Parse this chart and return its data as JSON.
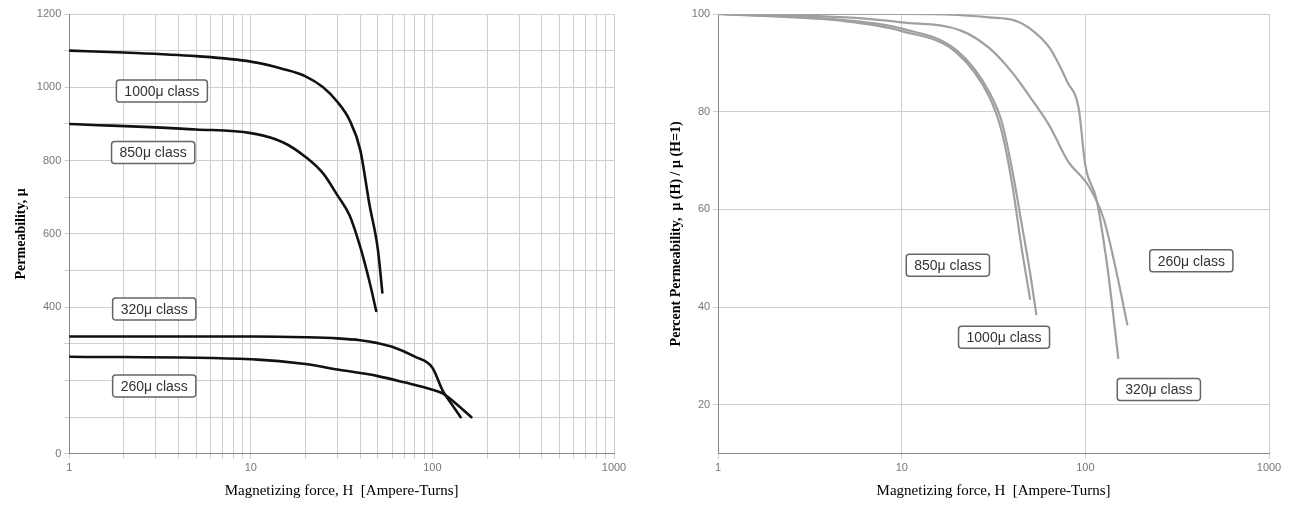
{
  "chart_data": [
    {
      "type": "line",
      "xlabel": "Magnetizing force, H  [Ampere-Turns]",
      "ylabel": "Permeability, μ",
      "log": "x",
      "grid": true,
      "legend": false,
      "marker": "none",
      "line_style": "solid",
      "xlim": [
        1,
        1000
      ],
      "xticks": [
        1,
        {
          "value": 2,
          "label": null
        },
        {
          "value": 3,
          "label": null
        },
        {
          "value": 4,
          "label": null
        },
        {
          "value": 5,
          "label": null
        },
        {
          "value": 6,
          "label": null
        },
        {
          "value": 7,
          "label": null
        },
        {
          "value": 8,
          "label": null
        },
        {
          "value": 9,
          "label": null
        },
        10,
        {
          "value": 20,
          "label": null
        },
        {
          "value": 30,
          "label": null
        },
        {
          "value": 40,
          "label": null
        },
        {
          "value": 50,
          "label": null
        },
        {
          "value": 60,
          "label": null
        },
        {
          "value": 70,
          "label": null
        },
        {
          "value": 80,
          "label": null
        },
        {
          "value": 90,
          "label": null
        },
        100,
        {
          "value": 200,
          "label": null
        },
        {
          "value": 300,
          "label": null
        },
        {
          "value": 400,
          "label": null
        },
        {
          "value": 500,
          "label": null
        },
        {
          "value": 600,
          "label": null
        },
        {
          "value": 700,
          "label": null
        },
        {
          "value": 800,
          "label": null
        },
        {
          "value": 900,
          "label": null
        },
        1000
      ],
      "ylim": [
        0,
        1200
      ],
      "yticks": [
        0,
        {
          "value": 100,
          "label": null
        },
        {
          "value": 200,
          "label": null
        },
        {
          "value": 300,
          "label": null
        },
        400,
        {
          "value": 500,
          "label": null
        },
        600,
        {
          "value": 700,
          "label": null
        },
        800,
        {
          "value": 900,
          "label": null
        },
        1000,
        {
          "value": 1100,
          "label": null
        },
        1200
      ],
      "series": [
        {
          "name": "1000μ class",
          "color": "#111111",
          "x": [
            1,
            2,
            5,
            10,
            15,
            20,
            25,
            30,
            35,
            40,
            45,
            50,
            53
          ],
          "values": [
            1100,
            1095,
            1085,
            1070,
            1050,
            1030,
            1000,
            960,
            910,
            830,
            680,
            560,
            440
          ]
        },
        {
          "name": "850μ class",
          "color": "#111111",
          "x": [
            1,
            5,
            10,
            15,
            20,
            25,
            30,
            35,
            40,
            45,
            49
          ],
          "values": [
            900,
            885,
            875,
            850,
            810,
            765,
            705,
            650,
            565,
            470,
            390
          ]
        },
        {
          "name": "320μ class",
          "color": "#111111",
          "x": [
            1,
            10,
            20,
            30,
            40,
            50,
            60,
            80,
            100,
            114,
            130,
            143
          ],
          "values": [
            320,
            320,
            318,
            315,
            310,
            302,
            292,
            265,
            235,
            172,
            130,
            100
          ]
        },
        {
          "name": "260μ class",
          "color": "#111111",
          "x": [
            1,
            10,
            20,
            30,
            50,
            70,
            100,
            114,
            140,
            164
          ],
          "values": [
            265,
            258,
            245,
            230,
            212,
            195,
            175,
            165,
            130,
            100
          ]
        }
      ]
    },
    {
      "type": "line",
      "xlabel": "Magnetizing force, H  [Ampere-Turns]",
      "ylabel": "Percent Permeability,  μ (H) / μ (H=1)",
      "log": "x",
      "grid": true,
      "legend": false,
      "marker": "none",
      "line_style": "solid",
      "xlim": [
        1,
        1000
      ],
      "xticks": [
        1,
        10,
        100,
        1000
      ],
      "ylim": [
        10,
        100
      ],
      "yticks": [
        20,
        40,
        60,
        80,
        100
      ],
      "series": [
        {
          "name": "850μ class",
          "color": "#a0a0a0",
          "x": [
            1,
            5,
            10,
            20,
            30,
            35,
            40,
            45,
            50
          ],
          "values": [
            100,
            98.5,
            96.5,
            92,
            83,
            76,
            65,
            52,
            41.7
          ]
        },
        {
          "name": "1000μ class",
          "color": "#a0a0a0",
          "x": [
            1,
            5,
            10,
            20,
            30,
            35,
            40,
            45,
            50,
            54
          ],
          "values": [
            100,
            98.7,
            97,
            92.5,
            84,
            78,
            68,
            57,
            47,
            38.6
          ]
        },
        {
          "name": "320μ class",
          "color": "#a0a0a0",
          "x": [
            1,
            10,
            20,
            30,
            41,
            50,
            64,
            80,
            92,
            100,
            115,
            132,
            151
          ],
          "values": [
            100,
            100,
            99.8,
            99.3,
            98.7,
            97,
            93,
            86,
            80.6,
            69,
            62,
            48,
            29.6
          ]
        },
        {
          "name": "260μ class",
          "color": "#a0a0a0",
          "x": [
            1,
            5,
            10,
            21,
            30,
            40,
            50,
            64,
            80,
            105,
            126,
            150,
            169
          ],
          "values": [
            100,
            99.3,
            98.3,
            96.6,
            93,
            88,
            83,
            77,
            70,
            64.6,
            58,
            46,
            36.5
          ]
        }
      ]
    }
  ]
}
